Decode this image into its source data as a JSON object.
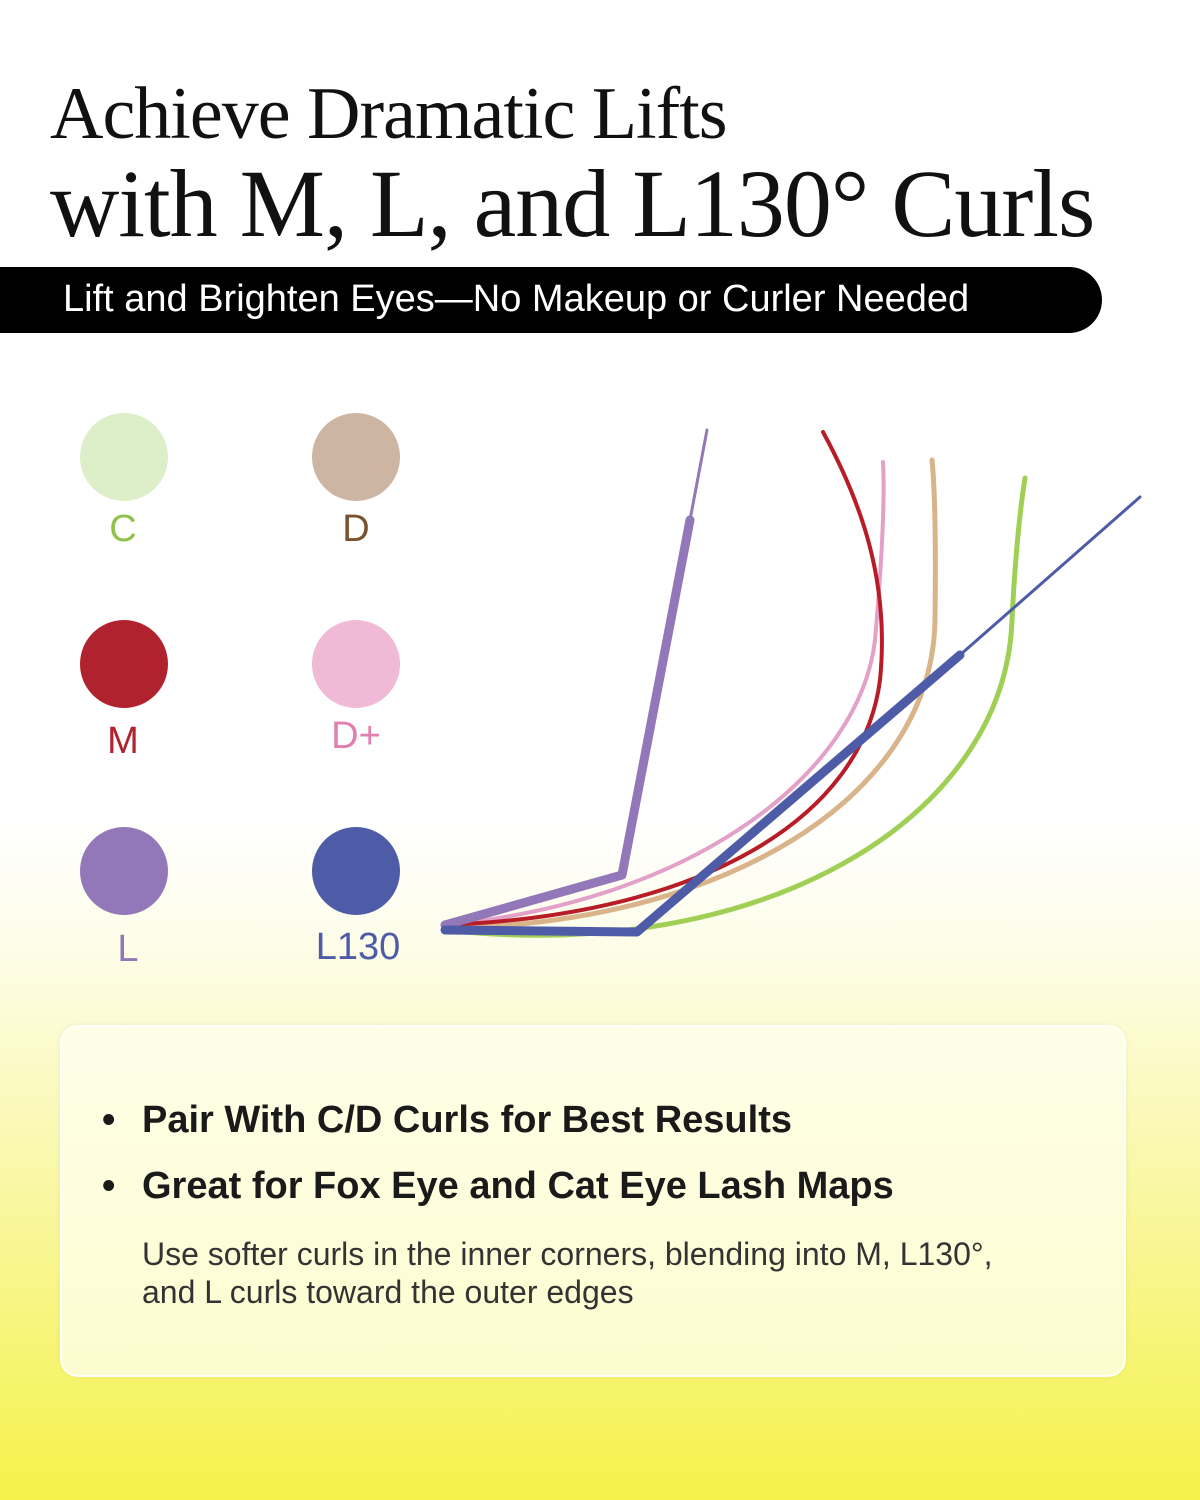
{
  "header": {
    "title_line1": "Achieve Dramatic Lifts",
    "title_line2": "with M, L, and L130° Curls",
    "subtitle": "Lift and Brighten Eyes—No Makeup or Curler Needed"
  },
  "legend": [
    {
      "label": "C",
      "color": "#dcefc8",
      "text_color": "#8fc24a"
    },
    {
      "label": "D",
      "color": "#cdb5a4",
      "text_color": "#7a5230"
    },
    {
      "label": "M",
      "color": "#b0222e",
      "text_color": "#b0222e"
    },
    {
      "label": "D+",
      "color": "#f0b9d5",
      "text_color": "#e07fb0"
    },
    {
      "label": "L",
      "color": "#9278b8",
      "text_color": "#9278b8"
    },
    {
      "label": "L130",
      "color": "#4e5ca8",
      "text_color": "#4e5ca8"
    }
  ],
  "curve_colors": {
    "C": "#9fd055",
    "D": "#d9b48a",
    "M": "#b81c26",
    "D+": "#e3a0c8",
    "L": "#9278b8",
    "L130": "#4e5ca8"
  },
  "card": {
    "bullets": [
      "Pair With C/D Curls for Best Results",
      "Great for Fox Eye and Cat Eye Lash Maps"
    ],
    "note": "Use softer curls in the inner corners, blending into M, L130°, and L curls toward the outer edges"
  }
}
